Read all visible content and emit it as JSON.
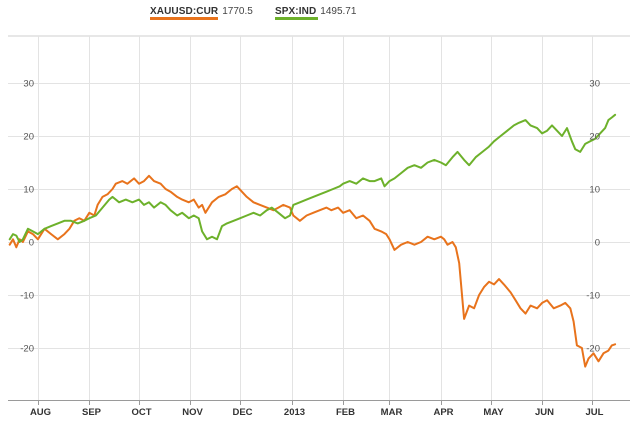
{
  "legend": [
    {
      "name": "XAUUSD:CUR",
      "value": "1770.5",
      "color": "#e8731c"
    },
    {
      "name": "SPX:IND",
      "value": "1495.71",
      "color": "#6db12b"
    }
  ],
  "chart_data": {
    "type": "line",
    "title": "",
    "xlabel": "",
    "ylabel": "",
    "x_range": [
      "2012-07-14",
      "2013-07-24"
    ],
    "ylim": [
      -30,
      35
    ],
    "yticks": [
      30,
      20,
      10,
      0,
      -10,
      -20
    ],
    "ytick_labels": [
      "30",
      "20",
      "10",
      "0",
      "-10",
      "-20"
    ],
    "grid": true,
    "legend_position": "top",
    "months": [
      {
        "label": "AUG",
        "date": "2012-08-01"
      },
      {
        "label": "SEP",
        "date": "2012-09-01"
      },
      {
        "label": "OCT",
        "date": "2012-10-01"
      },
      {
        "label": "NOV",
        "date": "2012-11-01"
      },
      {
        "label": "DEC",
        "date": "2012-12-01"
      },
      {
        "label": "2013",
        "date": "2013-01-01"
      },
      {
        "label": "FEB",
        "date": "2013-02-01"
      },
      {
        "label": "MAR",
        "date": "2013-03-01"
      },
      {
        "label": "APR",
        "date": "2013-04-01"
      },
      {
        "label": "MAY",
        "date": "2013-05-01"
      },
      {
        "label": "JUN",
        "date": "2013-06-01"
      },
      {
        "label": "JUL",
        "date": "2013-07-01"
      }
    ],
    "series": [
      {
        "name": "XAUUSD:CUR",
        "color": "#e8731c",
        "points": [
          [
            "2012-07-15",
            -0.5
          ],
          [
            "2012-07-17",
            0.5
          ],
          [
            "2012-07-19",
            -1
          ],
          [
            "2012-07-21",
            0.5
          ],
          [
            "2012-07-23",
            0
          ],
          [
            "2012-07-26",
            2
          ],
          [
            "2012-07-29",
            1.5
          ],
          [
            "2012-08-01",
            0.5
          ],
          [
            "2012-08-05",
            2.5
          ],
          [
            "2012-08-09",
            1.5
          ],
          [
            "2012-08-13",
            0.5
          ],
          [
            "2012-08-17",
            1.5
          ],
          [
            "2012-08-20",
            2.5
          ],
          [
            "2012-08-23",
            4
          ],
          [
            "2012-08-26",
            4.5
          ],
          [
            "2012-08-29",
            4
          ],
          [
            "2012-09-01",
            5.5
          ],
          [
            "2012-09-04",
            5
          ],
          [
            "2012-09-06",
            7
          ],
          [
            "2012-09-09",
            8.5
          ],
          [
            "2012-09-12",
            9
          ],
          [
            "2012-09-15",
            10
          ],
          [
            "2012-09-17",
            11
          ],
          [
            "2012-09-21",
            11.5
          ],
          [
            "2012-09-24",
            11
          ],
          [
            "2012-09-28",
            12
          ],
          [
            "2012-10-01",
            11
          ],
          [
            "2012-10-04",
            11.5
          ],
          [
            "2012-10-07",
            12.5
          ],
          [
            "2012-10-10",
            11.5
          ],
          [
            "2012-10-14",
            11
          ],
          [
            "2012-10-17",
            10
          ],
          [
            "2012-10-20",
            9.5
          ],
          [
            "2012-10-24",
            8.5
          ],
          [
            "2012-10-27",
            8
          ],
          [
            "2012-10-31",
            7.5
          ],
          [
            "2012-11-03",
            8
          ],
          [
            "2012-11-06",
            6.5
          ],
          [
            "2012-11-08",
            7
          ],
          [
            "2012-11-10",
            5.5
          ],
          [
            "2012-11-14",
            7.5
          ],
          [
            "2012-11-18",
            8.5
          ],
          [
            "2012-11-22",
            9
          ],
          [
            "2012-11-26",
            10
          ],
          [
            "2012-11-29",
            10.5
          ],
          [
            "2012-12-02",
            9.5
          ],
          [
            "2012-12-05",
            8.5
          ],
          [
            "2012-12-09",
            7.5
          ],
          [
            "2012-12-13",
            7
          ],
          [
            "2012-12-17",
            6.5
          ],
          [
            "2012-12-21",
            6
          ],
          [
            "2012-12-24",
            6.5
          ],
          [
            "2012-12-27",
            7
          ],
          [
            "2012-12-31",
            6.5
          ],
          [
            "2013-01-02",
            5
          ],
          [
            "2013-01-06",
            4
          ],
          [
            "2013-01-10",
            5
          ],
          [
            "2013-01-14",
            5.5
          ],
          [
            "2013-01-18",
            6
          ],
          [
            "2013-01-22",
            6.5
          ],
          [
            "2013-01-25",
            6
          ],
          [
            "2013-01-29",
            6.5
          ],
          [
            "2013-02-01",
            5.5
          ],
          [
            "2013-02-05",
            6
          ],
          [
            "2013-02-09",
            4.5
          ],
          [
            "2013-02-13",
            5
          ],
          [
            "2013-02-17",
            4
          ],
          [
            "2013-02-20",
            2.5
          ],
          [
            "2013-02-24",
            2
          ],
          [
            "2013-02-27",
            1.5
          ],
          [
            "2013-03-01",
            0.5
          ],
          [
            "2013-03-04",
            -1.5
          ],
          [
            "2013-03-08",
            -0.5
          ],
          [
            "2013-03-12",
            0
          ],
          [
            "2013-03-16",
            -0.5
          ],
          [
            "2013-03-20",
            0
          ],
          [
            "2013-03-24",
            1
          ],
          [
            "2013-03-28",
            0.5
          ],
          [
            "2013-04-01",
            1
          ],
          [
            "2013-04-03",
            0.5
          ],
          [
            "2013-04-05",
            -0.5
          ],
          [
            "2013-04-08",
            0
          ],
          [
            "2013-04-10",
            -1
          ],
          [
            "2013-04-12",
            -4
          ],
          [
            "2013-04-15",
            -14.5
          ],
          [
            "2013-04-18",
            -12
          ],
          [
            "2013-04-21",
            -12.5
          ],
          [
            "2013-04-24",
            -10
          ],
          [
            "2013-04-27",
            -8.5
          ],
          [
            "2013-04-30",
            -7.5
          ],
          [
            "2013-05-03",
            -8
          ],
          [
            "2013-05-06",
            -7
          ],
          [
            "2013-05-09",
            -8
          ],
          [
            "2013-05-13",
            -9.5
          ],
          [
            "2013-05-16",
            -11
          ],
          [
            "2013-05-19",
            -12.5
          ],
          [
            "2013-05-22",
            -13.5
          ],
          [
            "2013-05-25",
            -12
          ],
          [
            "2013-05-29",
            -12.5
          ],
          [
            "2013-06-01",
            -11.5
          ],
          [
            "2013-06-04",
            -11
          ],
          [
            "2013-06-08",
            -12.5
          ],
          [
            "2013-06-12",
            -12
          ],
          [
            "2013-06-15",
            -11.5
          ],
          [
            "2013-06-18",
            -12.5
          ],
          [
            "2013-06-20",
            -15
          ],
          [
            "2013-06-22",
            -19.5
          ],
          [
            "2013-06-25",
            -20
          ],
          [
            "2013-06-27",
            -23.5
          ],
          [
            "2013-06-29",
            -22
          ],
          [
            "2013-07-02",
            -21
          ],
          [
            "2013-07-05",
            -22.5
          ],
          [
            "2013-07-08",
            -21
          ],
          [
            "2013-07-11",
            -20.5
          ],
          [
            "2013-07-13",
            -19.5
          ],
          [
            "2013-07-15",
            -19.3
          ]
        ]
      },
      {
        "name": "SPX:IND",
        "color": "#6db12b",
        "points": [
          [
            "2012-07-15",
            0.5
          ],
          [
            "2012-07-17",
            1.5
          ],
          [
            "2012-07-19",
            1.2
          ],
          [
            "2012-07-21",
            0
          ],
          [
            "2012-07-23",
            0.5
          ],
          [
            "2012-07-26",
            2.5
          ],
          [
            "2012-07-29",
            2
          ],
          [
            "2012-08-01",
            1.5
          ],
          [
            "2012-08-05",
            2.5
          ],
          [
            "2012-08-09",
            3
          ],
          [
            "2012-08-13",
            3.5
          ],
          [
            "2012-08-17",
            4
          ],
          [
            "2012-08-21",
            4
          ],
          [
            "2012-08-25",
            3.5
          ],
          [
            "2012-08-29",
            4
          ],
          [
            "2012-09-01",
            4.5
          ],
          [
            "2012-09-05",
            5
          ],
          [
            "2012-09-09",
            6.5
          ],
          [
            "2012-09-13",
            8
          ],
          [
            "2012-09-15",
            8.5
          ],
          [
            "2012-09-19",
            7.5
          ],
          [
            "2012-09-23",
            8
          ],
          [
            "2012-09-27",
            7.5
          ],
          [
            "2012-10-01",
            8
          ],
          [
            "2012-10-04",
            7
          ],
          [
            "2012-10-07",
            7.5
          ],
          [
            "2012-10-10",
            6.5
          ],
          [
            "2012-10-14",
            7.5
          ],
          [
            "2012-10-17",
            7
          ],
          [
            "2012-10-20",
            6
          ],
          [
            "2012-10-24",
            5
          ],
          [
            "2012-10-27",
            5.5
          ],
          [
            "2012-10-31",
            4.5
          ],
          [
            "2012-11-03",
            5
          ],
          [
            "2012-11-06",
            4.5
          ],
          [
            "2012-11-08",
            2
          ],
          [
            "2012-11-11",
            0.5
          ],
          [
            "2012-11-14",
            1
          ],
          [
            "2012-11-17",
            0.5
          ],
          [
            "2012-11-20",
            3
          ],
          [
            "2012-11-23",
            3.5
          ],
          [
            "2012-11-27",
            4
          ],
          [
            "2012-12-01",
            4.5
          ],
          [
            "2012-12-05",
            5
          ],
          [
            "2012-12-09",
            5.5
          ],
          [
            "2012-12-13",
            5
          ],
          [
            "2012-12-17",
            6
          ],
          [
            "2012-12-20",
            6.5
          ],
          [
            "2012-12-24",
            5.5
          ],
          [
            "2012-12-28",
            4.5
          ],
          [
            "2012-12-31",
            5
          ],
          [
            "2013-01-02",
            7
          ],
          [
            "2013-01-06",
            7.5
          ],
          [
            "2013-01-10",
            8
          ],
          [
            "2013-01-14",
            8.5
          ],
          [
            "2013-01-18",
            9
          ],
          [
            "2013-01-22",
            9.5
          ],
          [
            "2013-01-26",
            10
          ],
          [
            "2013-01-30",
            10.5
          ],
          [
            "2013-02-01",
            11
          ],
          [
            "2013-02-05",
            11.5
          ],
          [
            "2013-02-09",
            11
          ],
          [
            "2013-02-13",
            12
          ],
          [
            "2013-02-17",
            11.5
          ],
          [
            "2013-02-20",
            11.5
          ],
          [
            "2013-02-24",
            12
          ],
          [
            "2013-02-26",
            10.5
          ],
          [
            "2013-03-01",
            11.5
          ],
          [
            "2013-03-04",
            12
          ],
          [
            "2013-03-08",
            13
          ],
          [
            "2013-03-12",
            14
          ],
          [
            "2013-03-16",
            14.5
          ],
          [
            "2013-03-20",
            14
          ],
          [
            "2013-03-24",
            15
          ],
          [
            "2013-03-28",
            15.5
          ],
          [
            "2013-04-01",
            15
          ],
          [
            "2013-04-04",
            14.5
          ],
          [
            "2013-04-08",
            16
          ],
          [
            "2013-04-11",
            17
          ],
          [
            "2013-04-15",
            15.5
          ],
          [
            "2013-04-18",
            14.5
          ],
          [
            "2013-04-22",
            16
          ],
          [
            "2013-04-26",
            17
          ],
          [
            "2013-04-30",
            18
          ],
          [
            "2013-05-03",
            19
          ],
          [
            "2013-05-07",
            20
          ],
          [
            "2013-05-11",
            21
          ],
          [
            "2013-05-15",
            22
          ],
          [
            "2013-05-18",
            22.5
          ],
          [
            "2013-05-22",
            23
          ],
          [
            "2013-05-25",
            22
          ],
          [
            "2013-05-29",
            21.5
          ],
          [
            "2013-06-01",
            20.5
          ],
          [
            "2013-06-04",
            21
          ],
          [
            "2013-06-07",
            22
          ],
          [
            "2013-06-10",
            21
          ],
          [
            "2013-06-13",
            20
          ],
          [
            "2013-06-16",
            21.5
          ],
          [
            "2013-06-19",
            19
          ],
          [
            "2013-06-21",
            17.5
          ],
          [
            "2013-06-24",
            17
          ],
          [
            "2013-06-27",
            18.5
          ],
          [
            "2013-06-30",
            19
          ],
          [
            "2013-07-03",
            19.5
          ],
          [
            "2013-07-06",
            20.5
          ],
          [
            "2013-07-09",
            21.5
          ],
          [
            "2013-07-11",
            23
          ],
          [
            "2013-07-13",
            23.5
          ],
          [
            "2013-07-15",
            24
          ]
        ]
      }
    ]
  }
}
